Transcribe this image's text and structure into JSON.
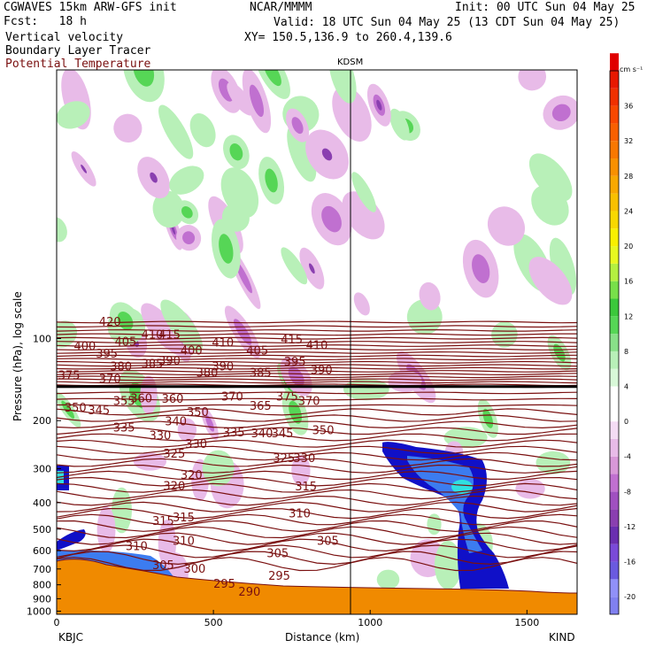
{
  "header": {
    "model": "CGWAVES 15km ARW-GFS init",
    "fcst": "Fcst:   18 h",
    "field1": "Vertical velocity",
    "field2": "Boundary Layer Tracer",
    "field3": "Potential Temperature",
    "org": "NCAR/MMMM",
    "init": "Init: 00 UTC Sun 04 May 25",
    "valid": "Valid: 18 UTC Sun 04 May 25 (13 CDT Sun 04 May 25)",
    "xy": "XY= 150.5,136.9 to 260.4,139.6",
    "station_mid": "KDSM",
    "station_left": "KBJC",
    "station_right": "KIND"
  },
  "colors": {
    "theta": "#7a1010",
    "tracer_dark": "#1010c8",
    "tracer_mid": "#3c7cf0",
    "tracer_light": "#30e0e0",
    "terrain": "#f08a00",
    "up_light": "#b8f0b8",
    "up_mid": "#56d656",
    "down_light": "#e8bbe8",
    "down_mid": "#c070d0",
    "down_dark": "#8a3fb0"
  },
  "chart_data": {
    "type": "heatmap",
    "xlabel": "Distance (km)",
    "ylabel": "Pressure (hPa), log scale",
    "x_ticks": [
      0,
      500,
      1000,
      1500
    ],
    "xlim": [
      0,
      1660
    ],
    "y_ticks": [
      100,
      200,
      300,
      400,
      500,
      600,
      700,
      800,
      900,
      1000
    ],
    "colorbar": {
      "unit": "cm s⁻¹",
      "levels": [
        -22,
        -20,
        -18,
        -16,
        -14,
        -12,
        -10,
        -8,
        -6,
        -4,
        -2,
        0,
        2,
        4,
        6,
        8,
        10,
        12,
        14,
        16,
        18,
        20,
        22,
        24,
        26,
        28,
        30,
        32,
        34,
        36,
        38,
        40
      ],
      "tick_labels": [
        "-20",
        "-16",
        "-12",
        "-8",
        "-4",
        "0",
        "4",
        "8",
        "12",
        "16",
        "20",
        "24",
        "28",
        "32",
        "36"
      ],
      "tick_values": [
        -20,
        -16,
        -12,
        -8,
        -4,
        0,
        4,
        8,
        12,
        16,
        20,
        24,
        28,
        32,
        36
      ],
      "colors": [
        "#8080f0",
        "#9090f8",
        "#6a5ae0",
        "#7a4ad8",
        "#6a2fb0",
        "#8a3fb0",
        "#a050c0",
        "#c070d0",
        "#d898d8",
        "#e8bbe8",
        "#f4dcf4",
        "#ffffff",
        "#ffffff",
        "#d8f8d8",
        "#b8f0b8",
        "#88e088",
        "#56d656",
        "#3cc83c",
        "#78e04a",
        "#b4f040",
        "#e8f820",
        "#f8f000",
        "#f8d800",
        "#f8c000",
        "#f8a800",
        "#f89000",
        "#f87800",
        "#f86000",
        "#f84800",
        "#f03000",
        "#e81800",
        "#e00000"
      ]
    },
    "theta_labels": [
      {
        "v": "420",
        "x": 170,
        "p": 87
      },
      {
        "v": "400",
        "x": 90,
        "p": 107
      },
      {
        "v": "395",
        "x": 160,
        "p": 114
      },
      {
        "v": "405",
        "x": 220,
        "p": 103
      },
      {
        "v": "410",
        "x": 305,
        "p": 97
      },
      {
        "v": "415",
        "x": 360,
        "p": 97
      },
      {
        "v": "380",
        "x": 205,
        "p": 127
      },
      {
        "v": "385",
        "x": 305,
        "p": 124
      },
      {
        "v": "390",
        "x": 360,
        "p": 121
      },
      {
        "v": "400",
        "x": 430,
        "p": 111
      },
      {
        "v": "410",
        "x": 530,
        "p": 104
      },
      {
        "v": "405",
        "x": 640,
        "p": 111
      },
      {
        "v": "415",
        "x": 750,
        "p": 101
      },
      {
        "v": "410",
        "x": 830,
        "p": 106
      },
      {
        "v": "395",
        "x": 760,
        "p": 122
      },
      {
        "v": "390",
        "x": 530,
        "p": 127
      },
      {
        "v": "385",
        "x": 650,
        "p": 134
      },
      {
        "v": "390",
        "x": 845,
        "p": 131
      },
      {
        "v": "375",
        "x": 40,
        "p": 137
      },
      {
        "v": "370",
        "x": 170,
        "p": 141
      },
      {
        "v": "380",
        "x": 480,
        "p": 134
      },
      {
        "v": "360",
        "x": 270,
        "p": 166
      },
      {
        "v": "355",
        "x": 215,
        "p": 170
      },
      {
        "v": "360",
        "x": 370,
        "p": 167
      },
      {
        "v": "370",
        "x": 560,
        "p": 164
      },
      {
        "v": "375",
        "x": 735,
        "p": 164
      },
      {
        "v": "370",
        "x": 805,
        "p": 170
      },
      {
        "v": "350",
        "x": 60,
        "p": 180
      },
      {
        "v": "345",
        "x": 135,
        "p": 184
      },
      {
        "v": "350",
        "x": 450,
        "p": 187
      },
      {
        "v": "365",
        "x": 650,
        "p": 177
      },
      {
        "v": "340",
        "x": 380,
        "p": 202
      },
      {
        "v": "335",
        "x": 215,
        "p": 213
      },
      {
        "v": "330",
        "x": 330,
        "p": 228
      },
      {
        "v": "330",
        "x": 445,
        "p": 244
      },
      {
        "v": "335",
        "x": 565,
        "p": 222
      },
      {
        "v": "340",
        "x": 655,
        "p": 223
      },
      {
        "v": "345",
        "x": 720,
        "p": 223
      },
      {
        "v": "350",
        "x": 850,
        "p": 218
      },
      {
        "v": "325",
        "x": 375,
        "p": 265
      },
      {
        "v": "325",
        "x": 725,
        "p": 275
      },
      {
        "v": "330",
        "x": 790,
        "p": 275
      },
      {
        "v": "320",
        "x": 430,
        "p": 318
      },
      {
        "v": "320",
        "x": 375,
        "p": 348
      },
      {
        "v": "315",
        "x": 795,
        "p": 350
      },
      {
        "v": "310",
        "x": 775,
        "p": 440
      },
      {
        "v": "315",
        "x": 340,
        "p": 468
      },
      {
        "v": "315",
        "x": 405,
        "p": 455
      },
      {
        "v": "305",
        "x": 865,
        "p": 555
      },
      {
        "v": "310",
        "x": 255,
        "p": 580
      },
      {
        "v": "310",
        "x": 405,
        "p": 553
      },
      {
        "v": "305",
        "x": 340,
        "p": 680
      },
      {
        "v": "305",
        "x": 705,
        "p": 615
      },
      {
        "v": "300",
        "x": 440,
        "p": 700
      },
      {
        "v": "295",
        "x": 535,
        "p": 795
      },
      {
        "v": "295",
        "x": 710,
        "p": 745
      },
      {
        "v": "290",
        "x": 615,
        "p": 850
      }
    ]
  }
}
